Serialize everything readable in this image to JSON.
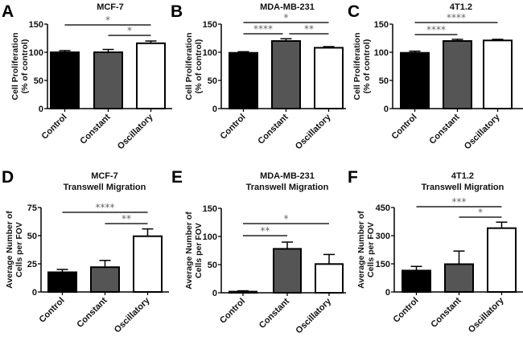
{
  "chart_data": [
    {
      "type": "bar",
      "panel": "A",
      "title": [
        "MCF-7"
      ],
      "ylabel": [
        "Cell Proliferation",
        "(% of control)"
      ],
      "categories": [
        "Control",
        "Constant",
        "Oscillatory"
      ],
      "values": [
        100,
        100,
        116
      ],
      "errors": [
        3,
        5,
        4
      ],
      "ylim": [
        0,
        150
      ],
      "yticks": [
        "0",
        "50",
        "100",
        "150"
      ],
      "ytick_values": [
        0,
        50,
        100,
        150
      ],
      "colors": [
        "#000000",
        "#555555",
        "#ffffff"
      ],
      "significance": [
        {
          "from": 0,
          "to": 2,
          "label": "*"
        },
        {
          "from": 1,
          "to": 2,
          "label": "*"
        }
      ]
    },
    {
      "type": "bar",
      "panel": "B",
      "title": [
        "MDA-MB-231"
      ],
      "ylabel": [
        "Cell Proliferation",
        "(% of control)"
      ],
      "categories": [
        "Control",
        "Constant",
        "Oscillatory"
      ],
      "values": [
        99,
        120,
        108
      ],
      "errors": [
        2,
        4,
        2
      ],
      "ylim": [
        0,
        150
      ],
      "yticks": [
        "0",
        "50",
        "100",
        "150"
      ],
      "ytick_values": [
        0,
        50,
        100,
        150
      ],
      "colors": [
        "#000000",
        "#555555",
        "#ffffff"
      ],
      "significance": [
        {
          "from": 0,
          "to": 2,
          "label": "*"
        },
        {
          "from": 0,
          "to": 1,
          "label": "****"
        },
        {
          "from": 1,
          "to": 2,
          "label": "**"
        }
      ]
    },
    {
      "type": "bar",
      "panel": "C",
      "title": [
        "4T1.2"
      ],
      "ylabel": [
        "Cell Proliferation",
        "(% of control)"
      ],
      "categories": [
        "Control",
        "Constant",
        "Oscillatory"
      ],
      "values": [
        99,
        120,
        121
      ],
      "errors": [
        3,
        3,
        2
      ],
      "ylim": [
        0,
        150
      ],
      "yticks": [
        "0",
        "50",
        "100",
        "150"
      ],
      "ytick_values": [
        0,
        50,
        100,
        150
      ],
      "colors": [
        "#000000",
        "#555555",
        "#ffffff"
      ],
      "significance": [
        {
          "from": 0,
          "to": 2,
          "label": "****"
        },
        {
          "from": 0,
          "to": 1,
          "label": "****"
        }
      ]
    },
    {
      "type": "bar",
      "panel": "D",
      "title": [
        "MCF-7",
        "Transwell Migration"
      ],
      "ylabel": [
        "Average Number of",
        "Cells per FOV"
      ],
      "categories": [
        "Control",
        "Constant",
        "Oscillatory"
      ],
      "values": [
        17.5,
        22,
        49.5
      ],
      "errors": [
        2.5,
        6,
        6.5
      ],
      "ylim": [
        0,
        75
      ],
      "yticks": [
        "0",
        "25",
        "50",
        "75"
      ],
      "ytick_values": [
        0,
        25,
        50,
        75
      ],
      "colors": [
        "#000000",
        "#555555",
        "#ffffff"
      ],
      "significance": [
        {
          "from": 0,
          "to": 2,
          "label": "****"
        },
        {
          "from": 1,
          "to": 2,
          "label": "**"
        }
      ]
    },
    {
      "type": "bar",
      "panel": "E",
      "title": [
        "MDA-MB-231",
        "Transwell Migration"
      ],
      "ylabel": [
        "Average Number of",
        "Cells per FOV"
      ],
      "categories": [
        "Control",
        "Constant",
        "Oscillatory"
      ],
      "values": [
        2,
        78,
        51
      ],
      "errors": [
        1.5,
        12,
        17
      ],
      "ylim": [
        0,
        150
      ],
      "yticks": [
        "0",
        "50",
        "100",
        "150"
      ],
      "ytick_values": [
        0,
        50,
        100,
        150
      ],
      "colors": [
        "#000000",
        "#555555",
        "#ffffff"
      ],
      "significance": [
        {
          "from": 0,
          "to": 2,
          "label": "*"
        },
        {
          "from": 0,
          "to": 1,
          "label": "**"
        }
      ]
    },
    {
      "type": "bar",
      "panel": "F",
      "title": [
        "4T1.2",
        "Transwell Migration"
      ],
      "ylabel": [
        "Average Number of",
        "Cells per FOV"
      ],
      "categories": [
        "Control",
        "Constant",
        "Oscillatory"
      ],
      "values": [
        114,
        148,
        340
      ],
      "errors": [
        22,
        70,
        32
      ],
      "ylim": [
        0,
        450
      ],
      "yticks": [
        "0",
        "150",
        "300",
        "450"
      ],
      "ytick_values": [
        0,
        150,
        300,
        450
      ],
      "colors": [
        "#000000",
        "#555555",
        "#ffffff"
      ],
      "significance": [
        {
          "from": 0,
          "to": 2,
          "label": "***"
        },
        {
          "from": 1,
          "to": 2,
          "label": "*"
        }
      ]
    }
  ]
}
